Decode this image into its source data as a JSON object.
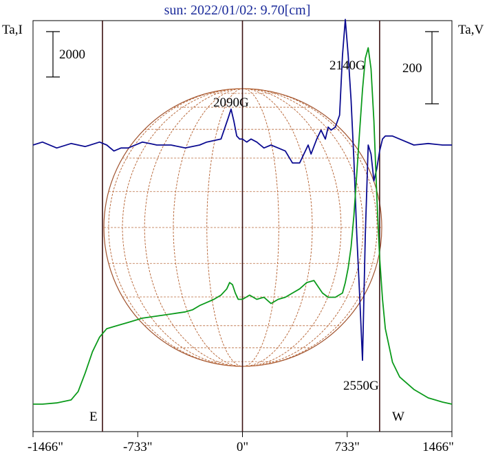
{
  "chart_data": {
    "type": "line",
    "title": "sun: 2022/01/02: 9.70[cm]",
    "left_axis_label": "Ta,I",
    "right_axis_label": "Ta,V",
    "x_ticks": [
      {
        "value": -1466,
        "label": "-1466\""
      },
      {
        "value": -733,
        "label": "-733\""
      },
      {
        "value": 0,
        "label": "0\""
      },
      {
        "value": 733,
        "label": "733\""
      },
      {
        "value": 1466,
        "label": "1466\""
      }
    ],
    "xlim": [
      -1466,
      1466
    ],
    "vertical_markers": [
      {
        "x": -980,
        "label": "E"
      },
      {
        "x": 0,
        "label": ""
      },
      {
        "x": 960,
        "label": "W"
      }
    ],
    "scale_bars": [
      {
        "side": "left",
        "label": "2000"
      },
      {
        "side": "right",
        "label": "200"
      }
    ],
    "annotations": [
      {
        "text": "2090G",
        "x": -70
      },
      {
        "text": "2140G",
        "x": 760
      },
      {
        "text": "2550G",
        "x": 850
      }
    ],
    "series": [
      {
        "color": "#0a0a90",
        "x": [
          -1466,
          -1400,
          -1300,
          -1200,
          -1100,
          -1000,
          -950,
          -900,
          -850,
          -800,
          -700,
          -650,
          -600,
          -500,
          -400,
          -300,
          -250,
          -200,
          -150,
          -100,
          -80,
          -60,
          -40,
          -20,
          0,
          30,
          60,
          100,
          150,
          200,
          250,
          300,
          350,
          380,
          400,
          430,
          460,
          480,
          520,
          550,
          580,
          600,
          620,
          650,
          680,
          700,
          720,
          740,
          760,
          780,
          800,
          820,
          840,
          860,
          880,
          900,
          920,
          940,
          960,
          980,
          1000,
          1050,
          1100,
          1200,
          1300,
          1400,
          1466
        ],
        "y": [
          0.0,
          0.1,
          -0.1,
          0.05,
          -0.05,
          0.1,
          0.0,
          -0.2,
          -0.1,
          -0.1,
          0.1,
          0.05,
          0.0,
          0.0,
          -0.1,
          0.0,
          0.1,
          0.15,
          0.2,
          0.9,
          1.2,
          0.8,
          0.3,
          0.2,
          0.2,
          0.1,
          0.2,
          0.1,
          -0.1,
          0.0,
          -0.1,
          -0.2,
          -0.6,
          -0.6,
          -0.6,
          -0.3,
          0.0,
          -0.3,
          0.2,
          0.5,
          0.2,
          0.6,
          0.5,
          0.6,
          1.0,
          3.0,
          4.2,
          3.0,
          1.5,
          -0.5,
          -3.0,
          -5.0,
          -7.2,
          -3.0,
          0.0,
          -0.3,
          -1.2,
          -0.8,
          -0.2,
          0.2,
          0.3,
          0.3,
          0.2,
          0.0,
          0.05,
          0.0,
          0.0
        ]
      },
      {
        "color": "#0a9a1a",
        "x": [
          -1466,
          -1400,
          -1300,
          -1200,
          -1150,
          -1100,
          -1050,
          -1000,
          -950,
          -900,
          -850,
          -800,
          -700,
          -600,
          -500,
          -450,
          -400,
          -350,
          -300,
          -250,
          -200,
          -150,
          -110,
          -90,
          -70,
          -50,
          -30,
          0,
          50,
          100,
          150,
          200,
          250,
          300,
          350,
          400,
          450,
          500,
          530,
          560,
          600,
          650,
          700,
          720,
          740,
          760,
          780,
          800,
          820,
          840,
          860,
          880,
          900,
          920,
          940,
          960,
          980,
          1000,
          1050,
          1100,
          1200,
          1300,
          1400,
          1466
        ],
        "y": [
          0,
          0,
          60,
          200,
          600,
          1500,
          2500,
          3200,
          3600,
          3700,
          3800,
          3900,
          4100,
          4200,
          4300,
          4350,
          4400,
          4500,
          4700,
          4850,
          5000,
          5200,
          5500,
          5800,
          5700,
          5300,
          5000,
          5000,
          5200,
          5000,
          5100,
          4800,
          5000,
          5100,
          5300,
          5500,
          5800,
          5900,
          5600,
          5300,
          5100,
          5100,
          5300,
          5800,
          6500,
          7500,
          9000,
          11000,
          13000,
          15000,
          16500,
          17000,
          16000,
          13500,
          10000,
          7000,
          5000,
          3600,
          2000,
          1300,
          700,
          300,
          100,
          0
        ]
      }
    ]
  }
}
